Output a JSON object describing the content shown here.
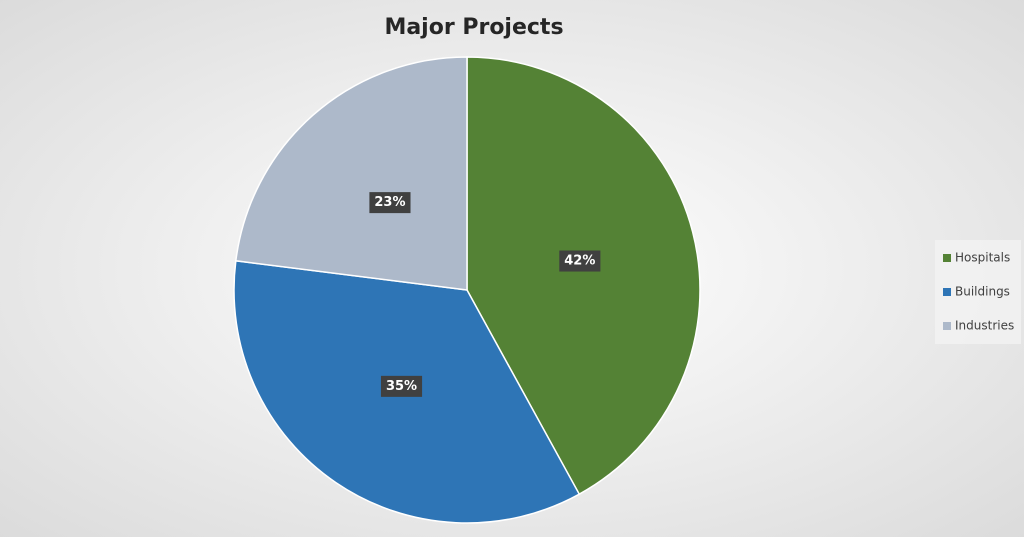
{
  "chart_data": {
    "type": "pie",
    "title": "Major Projects",
    "categories": [
      "Hospitals",
      "Buildings",
      "Industries"
    ],
    "values": [
      42,
      35,
      23
    ],
    "value_labels": [
      "42%",
      "35%",
      "23%"
    ],
    "colors": [
      "#548235",
      "#2e75b6",
      "#adb9ca"
    ],
    "legend": "right"
  }
}
